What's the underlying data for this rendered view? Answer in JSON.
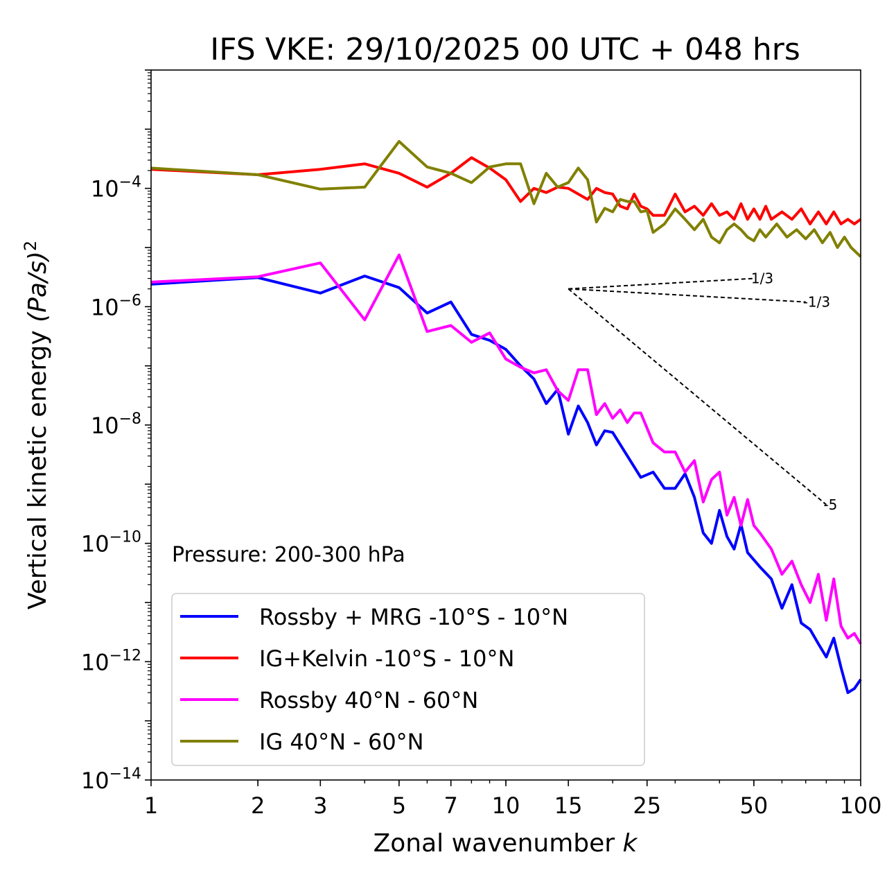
{
  "chart_data": {
    "type": "line",
    "title": "IFS VKE: 29/10/2025 00 UTC + 048 hrs",
    "xlabel": "Zonal wavenumber",
    "xlabel_var": "k",
    "ylabel": "Vertical kinetic energy",
    "ylabel_unit": "(Pa/s)",
    "ylabel_exp": "2",
    "xscale": "log",
    "yscale": "log",
    "xlim": [
      1,
      100
    ],
    "ylim": [
      1e-14,
      0.01
    ],
    "x_ticks": [
      1,
      2,
      3,
      5,
      7,
      10,
      15,
      25,
      50,
      100
    ],
    "x_tick_labels": [
      "1",
      "2",
      "3",
      "5",
      "7",
      "10",
      "15",
      "25",
      "50",
      "100"
    ],
    "y_ticks": [
      -14,
      -12,
      -10,
      -8,
      -6,
      -4
    ],
    "y_tick_base": "10",
    "y_tick_exps": [
      "−14",
      "−12",
      "−10",
      "−8",
      "−6",
      "−4"
    ],
    "annotation": "Pressure: 200-300 hPa",
    "legend_position": "lower-left",
    "series": [
      {
        "name": "Rossby + MRG -10°S - 10°N",
        "color": "#0000ff",
        "points": [
          [
            1,
            2.4e-06
          ],
          [
            2,
            3.1e-06
          ],
          [
            3,
            1.7e-06
          ],
          [
            4,
            3.3e-06
          ],
          [
            5,
            2.1e-06
          ],
          [
            6,
            7.8e-07
          ],
          [
            7,
            1.2e-06
          ],
          [
            8,
            3.4e-07
          ],
          [
            9,
            2.7e-07
          ],
          [
            10,
            1.9e-07
          ],
          [
            11,
            1e-07
          ],
          [
            12,
            6e-08
          ],
          [
            13,
            2.3e-08
          ],
          [
            14,
            4e-08
          ],
          [
            15,
            7e-09
          ],
          [
            16,
            2.1e-08
          ],
          [
            17,
            1.1e-08
          ],
          [
            18,
            4.6e-09
          ],
          [
            19,
            8e-09
          ],
          [
            20,
            7.5e-09
          ],
          [
            22,
            3e-09
          ],
          [
            24,
            1.3e-09
          ],
          [
            26,
            1.6e-09
          ],
          [
            28,
            8.5e-10
          ],
          [
            30,
            8.5e-10
          ],
          [
            32,
            1.5e-09
          ],
          [
            34,
            6e-10
          ],
          [
            36,
            1.5e-10
          ],
          [
            38,
            1e-10
          ],
          [
            40,
            3.6e-10
          ],
          [
            42,
            1.3e-10
          ],
          [
            44,
            8e-11
          ],
          [
            46,
            2.1e-10
          ],
          [
            48,
            7e-11
          ],
          [
            52,
            4e-11
          ],
          [
            56,
            2.5e-11
          ],
          [
            60,
            8e-12
          ],
          [
            64,
            2e-11
          ],
          [
            68,
            4.5e-12
          ],
          [
            72,
            3.5e-12
          ],
          [
            76,
            2e-12
          ],
          [
            80,
            1.2e-12
          ],
          [
            84,
            2.5e-12
          ],
          [
            88,
            8e-13
          ],
          [
            92,
            3e-13
          ],
          [
            96,
            3.5e-13
          ],
          [
            100,
            5e-13
          ]
        ]
      },
      {
        "name": "IG+Kelvin -10°S - 10°N",
        "color": "#ff0000",
        "points": [
          [
            1,
            0.00021
          ],
          [
            2,
            0.00017
          ],
          [
            3,
            0.00021
          ],
          [
            4,
            0.00026
          ],
          [
            5,
            0.00018
          ],
          [
            6,
            0.000105
          ],
          [
            7,
            0.00018
          ],
          [
            8,
            0.00033
          ],
          [
            9,
            0.00022
          ],
          [
            10,
            0.00014
          ],
          [
            11,
            6e-05
          ],
          [
            12,
            0.0001
          ],
          [
            13,
            8.5e-05
          ],
          [
            14,
            0.000105
          ],
          [
            15,
            0.0001
          ],
          [
            16,
            8e-05
          ],
          [
            17,
            6.5e-05
          ],
          [
            18,
            0.0001
          ],
          [
            19,
            8.5e-05
          ],
          [
            20,
            8e-05
          ],
          [
            21,
            5e-05
          ],
          [
            22,
            4.5e-05
          ],
          [
            23,
            8e-05
          ],
          [
            24,
            5e-05
          ],
          [
            25,
            4.5e-05
          ],
          [
            26,
            3.5e-05
          ],
          [
            28,
            3.5e-05
          ],
          [
            30,
            8e-05
          ],
          [
            32,
            4e-05
          ],
          [
            34,
            5e-05
          ],
          [
            36,
            3.5e-05
          ],
          [
            38,
            5.5e-05
          ],
          [
            40,
            3.5e-05
          ],
          [
            42,
            4e-05
          ],
          [
            44,
            3e-05
          ],
          [
            46,
            5.5e-05
          ],
          [
            48,
            3e-05
          ],
          [
            50,
            4.5e-05
          ],
          [
            52,
            3e-05
          ],
          [
            54,
            5e-05
          ],
          [
            56,
            3e-05
          ],
          [
            60,
            4e-05
          ],
          [
            64,
            3e-05
          ],
          [
            68,
            4.5e-05
          ],
          [
            72,
            2.5e-05
          ],
          [
            76,
            4e-05
          ],
          [
            80,
            2.5e-05
          ],
          [
            84,
            4e-05
          ],
          [
            88,
            2.5e-05
          ],
          [
            92,
            3e-05
          ],
          [
            96,
            2.5e-05
          ],
          [
            100,
            3e-05
          ]
        ]
      },
      {
        "name": "Rossby 40°N - 60°N",
        "color": "#ff00ff",
        "points": [
          [
            1,
            2.6e-06
          ],
          [
            2,
            3.2e-06
          ],
          [
            3,
            5.5e-06
          ],
          [
            4,
            6e-07
          ],
          [
            5,
            7.5e-06
          ],
          [
            6,
            3.8e-07
          ],
          [
            7,
            4.8e-07
          ],
          [
            8,
            2.5e-07
          ],
          [
            9,
            3.6e-07
          ],
          [
            10,
            1.3e-07
          ],
          [
            11,
            9.5e-08
          ],
          [
            12,
            7.6e-08
          ],
          [
            13,
            8.6e-08
          ],
          [
            14,
            3.8e-08
          ],
          [
            15,
            2.6e-08
          ],
          [
            16,
            8.6e-08
          ],
          [
            17,
            8.6e-08
          ],
          [
            18,
            1.5e-08
          ],
          [
            19,
            2.3e-08
          ],
          [
            20,
            1.3e-08
          ],
          [
            21,
            1.8e-08
          ],
          [
            22,
            1.1e-08
          ],
          [
            23,
            1.6e-08
          ],
          [
            24,
            1.6e-08
          ],
          [
            26,
            5e-09
          ],
          [
            28,
            3.5e-09
          ],
          [
            30,
            3.5e-09
          ],
          [
            32,
            1.6e-09
          ],
          [
            34,
            2.5e-09
          ],
          [
            36,
            5e-10
          ],
          [
            38,
            1.2e-09
          ],
          [
            40,
            1.6e-09
          ],
          [
            42,
            3e-10
          ],
          [
            44,
            6e-10
          ],
          [
            46,
            2e-10
          ],
          [
            48,
            5.5e-10
          ],
          [
            50,
            2e-10
          ],
          [
            52,
            1.5e-10
          ],
          [
            56,
            8e-11
          ],
          [
            60,
            3e-11
          ],
          [
            64,
            5e-11
          ],
          [
            68,
            2e-11
          ],
          [
            72,
            1e-11
          ],
          [
            76,
            3e-11
          ],
          [
            80,
            5e-12
          ],
          [
            84,
            2.5e-11
          ],
          [
            88,
            4e-12
          ],
          [
            92,
            2.5e-12
          ],
          [
            96,
            3e-12
          ],
          [
            100,
            2e-12
          ]
        ]
      },
      {
        "name": "IG 40°N - 60°N",
        "color": "#808000",
        "points": [
          [
            1,
            0.00022
          ],
          [
            2,
            0.00017
          ],
          [
            3,
            9.7e-05
          ],
          [
            4,
            0.000105
          ],
          [
            5,
            0.00062
          ],
          [
            6,
            0.00023
          ],
          [
            7,
            0.00018
          ],
          [
            8,
            0.000125
          ],
          [
            9,
            0.00023
          ],
          [
            10,
            0.00026
          ],
          [
            11,
            0.00026
          ],
          [
            12,
            5.5e-05
          ],
          [
            13,
            0.00018
          ],
          [
            14,
            0.000105
          ],
          [
            15,
            0.000125
          ],
          [
            16,
            0.00022
          ],
          [
            17,
            0.00014
          ],
          [
            18,
            2.7e-05
          ],
          [
            19,
            4.6e-05
          ],
          [
            20,
            4e-05
          ],
          [
            21,
            6.5e-05
          ],
          [
            22,
            6e-05
          ],
          [
            23,
            6e-05
          ],
          [
            24,
            4e-05
          ],
          [
            25,
            4.2e-05
          ],
          [
            26,
            1.8e-05
          ],
          [
            28,
            2.5e-05
          ],
          [
            30,
            4.5e-05
          ],
          [
            32,
            3e-05
          ],
          [
            34,
            2e-05
          ],
          [
            36,
            3e-05
          ],
          [
            38,
            1.5e-05
          ],
          [
            40,
            1.2e-05
          ],
          [
            42,
            2e-05
          ],
          [
            44,
            2.5e-05
          ],
          [
            46,
            2e-05
          ],
          [
            48,
            1.5e-05
          ],
          [
            50,
            1.3e-05
          ],
          [
            52,
            2e-05
          ],
          [
            54,
            1.5e-05
          ],
          [
            58,
            2.5e-05
          ],
          [
            62,
            1.5e-05
          ],
          [
            66,
            2e-05
          ],
          [
            70,
            1.4e-05
          ],
          [
            74,
            2e-05
          ],
          [
            78,
            1.2e-05
          ],
          [
            82,
            1.8e-05
          ],
          [
            86,
            1e-05
          ],
          [
            90,
            1.5e-05
          ],
          [
            94,
            1e-05
          ],
          [
            100,
            7e-06
          ]
        ]
      }
    ],
    "reference_slopes": [
      {
        "label": "1/3",
        "start": [
          15,
          2e-06
        ],
        "end": [
          50,
          3e-06
        ]
      },
      {
        "label": "-1/3",
        "start": [
          15,
          2e-06
        ],
        "end": [
          70,
          1.2e-06
        ]
      },
      {
        "label": "-5",
        "start": [
          15,
          2e-06
        ],
        "end": [
          80,
          4.5e-10
        ]
      }
    ]
  }
}
